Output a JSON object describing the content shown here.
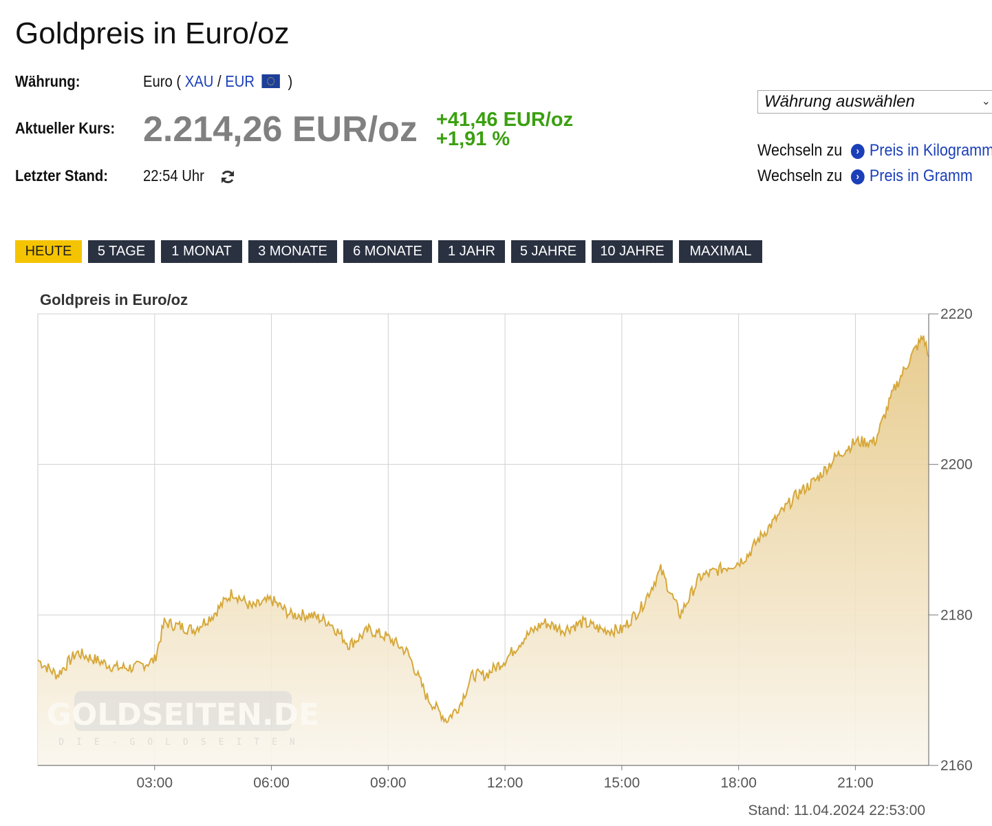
{
  "page": {
    "title": "Goldpreis in Euro/oz"
  },
  "info": {
    "currency_label": "Währung:",
    "currency_name": "Euro",
    "open_paren": "(",
    "link_xau": "XAU",
    "slash": "/",
    "link_eur": "EUR",
    "close_paren": ")",
    "flag_icon": "eu-flag-icon",
    "price_label": "Aktueller Kurs:",
    "price": "2.214,26 EUR/oz",
    "change_abs": "+41,46 EUR/oz",
    "change_pct": "+1,91 %",
    "updated_label": "Letzter Stand:",
    "updated_time": "22:54 Uhr",
    "refresh_icon": "refresh-icon"
  },
  "sidebar": {
    "select_value": "Währung auswählen",
    "switch_prefix": "Wechseln zu",
    "switch_kg": "Preis in Kilogramm",
    "switch_g": "Preis in Gramm"
  },
  "tabs": [
    "HEUTE",
    "5 TAGE",
    "1 MONAT",
    "3 MONATE",
    "6 MONATE",
    "1 JAHR",
    "5 JAHRE",
    "10 JAHRE",
    "MAXIMAL"
  ],
  "active_tab": "HEUTE",
  "colors": {
    "accent": "#f5c400",
    "tab_bg": "#2a3140",
    "link": "#1a3fb8",
    "positive": "#3aa010",
    "price_grey": "#808080",
    "gold_line": "#d6a83a",
    "gold_fill": "#e8cf92"
  },
  "watermark": {
    "logo": "GOLDSEITEN.DE",
    "tagline": "DIE-GOLDSEITEN"
  },
  "chart_data": {
    "type": "area",
    "title": "Goldpreis in Euro/oz",
    "x_tick_labels": [
      "03:00",
      "06:00",
      "09:00",
      "12:00",
      "15:00",
      "18:00",
      "21:00"
    ],
    "y_tick_labels": [
      "2220",
      "2200",
      "2180",
      "2160"
    ],
    "ylim": [
      2160,
      2220
    ],
    "x_range": [
      "00:00",
      "22:53"
    ],
    "grid": true,
    "y_axis_side": "right",
    "footer": "Stand: 11.04.2024 22:53:00",
    "series": [
      {
        "x": [
          "00:00",
          "00:30",
          "01:00",
          "01:30",
          "02:00",
          "02:30",
          "03:00",
          "03:15",
          "04:00",
          "04:30",
          "05:00",
          "05:30",
          "06:00",
          "06:30",
          "07:00",
          "07:30",
          "08:00",
          "08:30",
          "09:00",
          "09:30",
          "10:00",
          "10:30",
          "10:50",
          "11:10",
          "11:30",
          "12:00",
          "12:30",
          "13:00",
          "13:30",
          "14:00",
          "14:30",
          "15:00",
          "15:30",
          "16:00",
          "16:30",
          "17:00",
          "17:30",
          "18:00",
          "18:15",
          "18:30",
          "19:00",
          "19:30",
          "20:00",
          "20:30",
          "21:00",
          "21:30",
          "22:00",
          "22:30",
          "22:45",
          "22:53"
        ],
        "values": [
          2174,
          2172,
          2175,
          2174,
          2173,
          2173,
          2174,
          2179,
          2178,
          2180,
          2183,
          2181,
          2182,
          2180,
          2180,
          2179,
          2176,
          2178,
          2177,
          2175,
          2169,
          2166,
          2168,
          2172,
          2172,
          2174,
          2177,
          2179,
          2178,
          2179,
          2178,
          2178,
          2181,
          2186,
          2180,
          2185,
          2186,
          2187,
          2188,
          2190,
          2193,
          2196,
          2198,
          2201,
          2203,
          2203,
          2210,
          2215,
          2217,
          2214.3
        ]
      }
    ]
  }
}
